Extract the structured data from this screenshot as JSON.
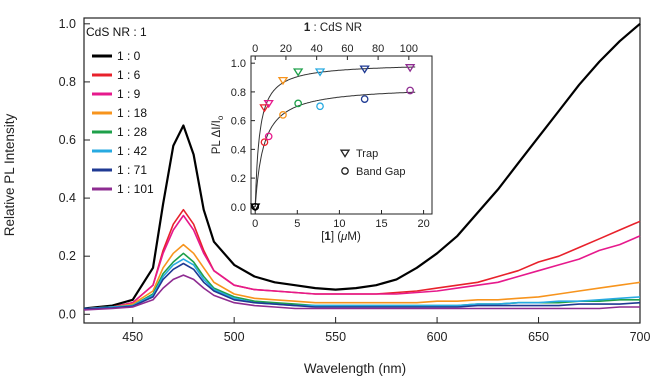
{
  "chart_data": [
    {
      "type": "line",
      "xlabel": "Wavelength (nm)",
      "ylabel": "Relative PL Intensity",
      "xlim": [
        426,
        700
      ],
      "ylim": [
        -0.03,
        1.02
      ],
      "xticks": [
        450,
        500,
        550,
        600,
        650,
        700
      ],
      "xtick_labels": [
        "450",
        "500",
        "550",
        "600",
        "650",
        "700"
      ],
      "yticks": [
        0.0,
        0.2,
        0.4,
        0.6,
        0.8,
        1.0
      ],
      "ytick_labels": [
        "0.0",
        "0.2",
        "0.4",
        "0.6",
        "0.8",
        "1.0"
      ],
      "grid": false,
      "legend_placement": "top-left",
      "legend_title": "CdS NR : 1",
      "series": [
        {
          "name": "1 : 0",
          "color": "#000000",
          "x": [
            426,
            440,
            450,
            460,
            465,
            470,
            475,
            480,
            485,
            490,
            500,
            510,
            520,
            530,
            540,
            550,
            560,
            570,
            580,
            590,
            600,
            610,
            620,
            630,
            640,
            650,
            660,
            670,
            680,
            690,
            700
          ],
          "y": [
            0.02,
            0.03,
            0.05,
            0.16,
            0.38,
            0.58,
            0.65,
            0.55,
            0.36,
            0.25,
            0.17,
            0.13,
            0.11,
            0.1,
            0.09,
            0.085,
            0.09,
            0.1,
            0.12,
            0.16,
            0.21,
            0.27,
            0.35,
            0.43,
            0.52,
            0.61,
            0.7,
            0.79,
            0.87,
            0.94,
            1.0
          ]
        },
        {
          "name": "1 : 6",
          "color": "#e8212b",
          "x": [
            426,
            440,
            450,
            460,
            465,
            470,
            475,
            480,
            485,
            490,
            500,
            510,
            520,
            530,
            540,
            550,
            560,
            570,
            580,
            590,
            600,
            610,
            620,
            630,
            640,
            650,
            660,
            670,
            680,
            690,
            700
          ],
          "y": [
            0.02,
            0.025,
            0.04,
            0.1,
            0.22,
            0.31,
            0.36,
            0.31,
            0.22,
            0.15,
            0.1,
            0.085,
            0.08,
            0.075,
            0.07,
            0.07,
            0.07,
            0.07,
            0.075,
            0.08,
            0.09,
            0.1,
            0.11,
            0.13,
            0.15,
            0.18,
            0.2,
            0.23,
            0.26,
            0.29,
            0.32
          ]
        },
        {
          "name": "1 : 9",
          "color": "#e6198c",
          "x": [
            426,
            440,
            450,
            460,
            465,
            470,
            475,
            480,
            485,
            490,
            500,
            510,
            520,
            530,
            540,
            550,
            560,
            570,
            580,
            590,
            600,
            610,
            620,
            630,
            640,
            650,
            660,
            670,
            680,
            690,
            700
          ],
          "y": [
            0.02,
            0.025,
            0.04,
            0.1,
            0.21,
            0.29,
            0.34,
            0.29,
            0.21,
            0.15,
            0.1,
            0.085,
            0.08,
            0.075,
            0.07,
            0.07,
            0.07,
            0.07,
            0.07,
            0.075,
            0.08,
            0.09,
            0.1,
            0.11,
            0.13,
            0.15,
            0.17,
            0.19,
            0.22,
            0.24,
            0.27
          ]
        },
        {
          "name": "1 : 18",
          "color": "#f7941d",
          "x": [
            426,
            440,
            450,
            460,
            465,
            470,
            475,
            480,
            485,
            490,
            500,
            510,
            520,
            530,
            540,
            550,
            560,
            570,
            580,
            590,
            600,
            610,
            620,
            630,
            640,
            650,
            660,
            670,
            680,
            690,
            700
          ],
          "y": [
            0.02,
            0.025,
            0.035,
            0.08,
            0.16,
            0.21,
            0.24,
            0.21,
            0.16,
            0.11,
            0.07,
            0.055,
            0.05,
            0.045,
            0.04,
            0.04,
            0.04,
            0.04,
            0.04,
            0.04,
            0.045,
            0.045,
            0.05,
            0.05,
            0.055,
            0.06,
            0.07,
            0.08,
            0.09,
            0.1,
            0.11
          ]
        },
        {
          "name": "1 : 28",
          "color": "#1ea04a",
          "x": [
            426,
            440,
            450,
            460,
            465,
            470,
            475,
            480,
            485,
            490,
            500,
            510,
            520,
            530,
            540,
            550,
            560,
            570,
            580,
            590,
            600,
            610,
            620,
            630,
            640,
            650,
            660,
            670,
            680,
            690,
            700
          ],
          "y": [
            0.02,
            0.025,
            0.03,
            0.07,
            0.14,
            0.18,
            0.21,
            0.18,
            0.13,
            0.09,
            0.06,
            0.045,
            0.04,
            0.035,
            0.03,
            0.03,
            0.03,
            0.03,
            0.03,
            0.03,
            0.03,
            0.03,
            0.035,
            0.035,
            0.04,
            0.04,
            0.04,
            0.045,
            0.045,
            0.05,
            0.05
          ]
        },
        {
          "name": "1 : 42",
          "color": "#27aae1",
          "x": [
            426,
            440,
            450,
            460,
            465,
            470,
            475,
            480,
            485,
            490,
            500,
            510,
            520,
            530,
            540,
            550,
            560,
            570,
            580,
            590,
            600,
            610,
            620,
            630,
            640,
            650,
            660,
            670,
            680,
            690,
            700
          ],
          "y": [
            0.02,
            0.025,
            0.03,
            0.065,
            0.13,
            0.17,
            0.19,
            0.17,
            0.12,
            0.085,
            0.055,
            0.04,
            0.035,
            0.03,
            0.03,
            0.03,
            0.03,
            0.03,
            0.03,
            0.03,
            0.03,
            0.03,
            0.035,
            0.035,
            0.04,
            0.04,
            0.045,
            0.045,
            0.05,
            0.055,
            0.06
          ]
        },
        {
          "name": "1 : 71",
          "color": "#1f3a93",
          "x": [
            426,
            440,
            450,
            460,
            465,
            470,
            475,
            480,
            485,
            490,
            500,
            510,
            520,
            530,
            540,
            550,
            560,
            570,
            580,
            590,
            600,
            610,
            620,
            630,
            640,
            650,
            660,
            670,
            680,
            690,
            700
          ],
          "y": [
            0.02,
            0.022,
            0.028,
            0.06,
            0.12,
            0.155,
            0.175,
            0.155,
            0.11,
            0.08,
            0.05,
            0.04,
            0.035,
            0.03,
            0.025,
            0.025,
            0.025,
            0.025,
            0.025,
            0.025,
            0.025,
            0.025,
            0.03,
            0.03,
            0.03,
            0.03,
            0.03,
            0.035,
            0.035,
            0.035,
            0.04
          ]
        },
        {
          "name": "1 : 101",
          "color": "#8e2c91",
          "x": [
            426,
            440,
            450,
            460,
            465,
            470,
            475,
            480,
            485,
            490,
            500,
            510,
            520,
            530,
            540,
            550,
            560,
            570,
            580,
            590,
            600,
            610,
            620,
            630,
            640,
            650,
            660,
            670,
            680,
            690,
            700
          ],
          "y": [
            0.015,
            0.02,
            0.025,
            0.05,
            0.09,
            0.12,
            0.135,
            0.12,
            0.09,
            0.065,
            0.04,
            0.03,
            0.025,
            0.02,
            0.02,
            0.02,
            0.02,
            0.02,
            0.02,
            0.02,
            0.02,
            0.02,
            0.02,
            0.02,
            0.02,
            0.02,
            0.02,
            0.02,
            0.02,
            0.025,
            0.025
          ]
        }
      ]
    },
    {
      "type": "scatter",
      "xlabel_prefix": "[",
      "xlabel_bold": "1",
      "xlabel_suffix": "] (",
      "xlabel_unit_greek": "μ",
      "xlabel_unit_rest": "M)",
      "top_axis_label_bold": "1",
      "top_axis_label_rest": " : CdS NR",
      "ylabel_main": "PL ΔI/I",
      "ylabel_sub": "o",
      "xlim": [
        -0.5,
        21
      ],
      "ylim": [
        -0.05,
        1.05
      ],
      "top_axis_ratio_per_uM": 5.48,
      "xticks": [
        0,
        5,
        10,
        15,
        20
      ],
      "xtick_labels": [
        "0",
        "5",
        "10",
        "15",
        "20"
      ],
      "yticks": [
        0.0,
        0.2,
        0.4,
        0.6,
        0.8,
        1.0
      ],
      "ytick_labels": [
        "0.0",
        "0.2",
        "0.4",
        "0.6",
        "0.8",
        "1.0"
      ],
      "top_ticks": [
        0,
        20,
        40,
        60,
        80,
        100
      ],
      "top_tick_labels": [
        "0",
        "20",
        "40",
        "60",
        "80",
        "100"
      ],
      "fits": [
        {
          "name": "Trap fit",
          "a": 1.0,
          "k": 0.52
        },
        {
          "name": "Band Gap fit",
          "a": 0.84,
          "k": 1.0
        }
      ],
      "legend": [
        {
          "label": "Trap",
          "marker": "triangle-down"
        },
        {
          "label": "Band Gap",
          "marker": "circle"
        }
      ],
      "series": [
        {
          "name": "Trap",
          "marker": "triangle-down",
          "x": [
            0,
            1.1,
            1.6,
            3.3,
            5.1,
            7.7,
            13.0,
            18.4
          ],
          "y": [
            0.0,
            0.69,
            0.72,
            0.88,
            0.94,
            0.94,
            0.96,
            0.97
          ],
          "colors": [
            "#000000",
            "#e8212b",
            "#e6198c",
            "#f7941d",
            "#1ea04a",
            "#27aae1",
            "#1f3a93",
            "#8e2c91"
          ]
        },
        {
          "name": "Band Gap",
          "marker": "circle",
          "x": [
            0,
            1.1,
            1.6,
            3.3,
            5.1,
            7.7,
            13.0,
            18.4
          ],
          "y": [
            0.0,
            0.45,
            0.49,
            0.64,
            0.72,
            0.7,
            0.75,
            0.81
          ],
          "colors": [
            "#000000",
            "#e8212b",
            "#e6198c",
            "#f7941d",
            "#1ea04a",
            "#27aae1",
            "#1f3a93",
            "#8e2c91"
          ]
        }
      ]
    }
  ]
}
